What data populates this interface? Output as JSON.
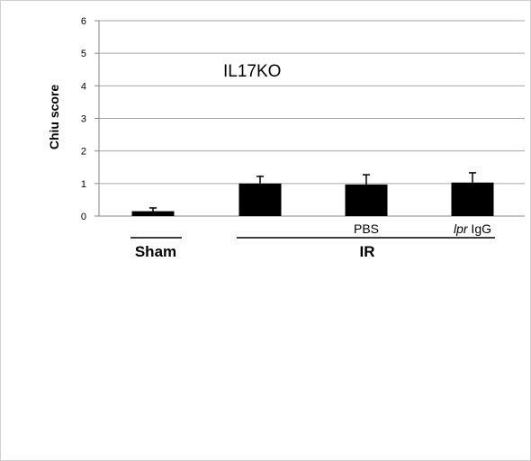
{
  "chart_data": {
    "type": "bar",
    "title": "IL17KO",
    "ylabel": "Chiu score",
    "xlabel": "",
    "ylim": [
      0,
      6
    ],
    "yticks": [
      0,
      1,
      2,
      3,
      4,
      5,
      6
    ],
    "grid": true,
    "bars": [
      {
        "value": 0.15,
        "error": 0.1,
        "sub_label": ""
      },
      {
        "value": 1.0,
        "error": 0.22,
        "sub_label": ""
      },
      {
        "value": 0.97,
        "error": 0.3,
        "sub_label": "PBS"
      },
      {
        "value": 1.03,
        "error": 0.3,
        "sub_label": "lpr IgG"
      }
    ],
    "groups": [
      {
        "label": "Sham",
        "bars": [
          0
        ]
      },
      {
        "label": "IR",
        "bars": [
          1,
          2,
          3
        ]
      }
    ],
    "colors": {
      "bar": "#000000",
      "grid": "#a6a6a6",
      "axis": "#868686"
    }
  }
}
